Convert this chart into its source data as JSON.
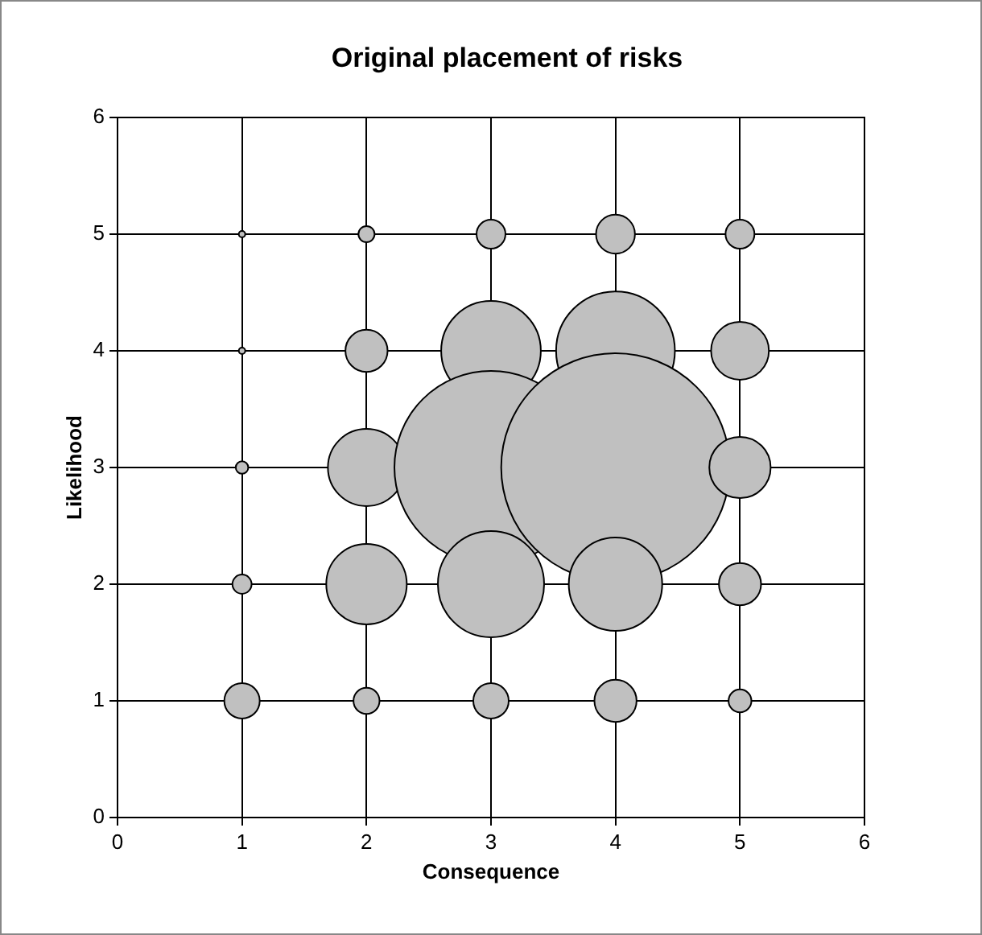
{
  "chart_data": {
    "type": "bubble",
    "title": "Original placement of risks",
    "xlabel": "Consequence",
    "ylabel": "Likelihood",
    "x": [
      1,
      2,
      3,
      4,
      5,
      1,
      2,
      3,
      4,
      5,
      1,
      2,
      3,
      4,
      5,
      1,
      2,
      3,
      4,
      5,
      1,
      2,
      3,
      4,
      5
    ],
    "values": [
      5,
      5,
      5,
      5,
      5,
      4,
      4,
      4,
      4,
      4,
      3,
      3,
      3,
      3,
      3,
      2,
      2,
      2,
      2,
      2,
      1,
      1,
      1,
      1,
      1
    ],
    "sizes": [
      0.0008,
      0.005,
      0.016,
      0.029,
      0.016,
      0.0008,
      0.034,
      0.19,
      0.27,
      0.064,
      0.003,
      0.114,
      0.714,
      1,
      0.072,
      0.007,
      0.124,
      0.216,
      0.167,
      0.034,
      0.024,
      0.013,
      0.024,
      0.034,
      0.01
    ],
    "color": "#c0c0c0",
    "xlim": [
      0,
      6
    ],
    "ylim": [
      0,
      6
    ],
    "xticks": [
      0,
      1,
      2,
      3,
      4,
      5,
      6
    ],
    "yticks": [
      0,
      1,
      2,
      3,
      4,
      5,
      6
    ],
    "grid": true,
    "legend": false
  }
}
